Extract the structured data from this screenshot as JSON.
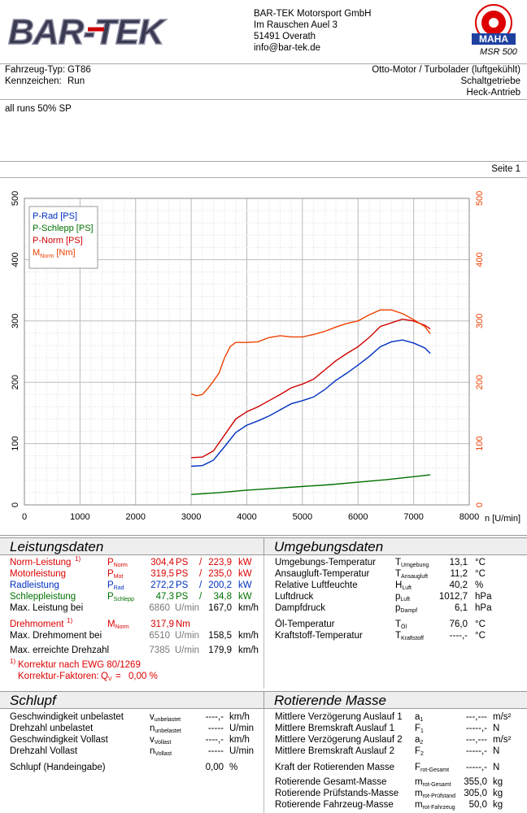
{
  "company": {
    "name": "BAR-TEK Motorsport GmbH",
    "street": "Im Rauschen Auel 3",
    "city": "51491 Overath",
    "email": "info@bar-tek.de",
    "logo_text": "BAR-TEK"
  },
  "device": {
    "model": "MSR 500",
    "brand": "MAHA",
    "seal_text": "Maschinenbau Haldenwang"
  },
  "vehicle": {
    "type_label": "Fahrzeug-Typ:",
    "type_value": "GT86",
    "plate_label": "Kennzeichen:",
    "plate_value": "Run",
    "engine": "Otto-Motor / Turbolader (luftgekühlt)",
    "gearbox": "Schaltgetriebe",
    "drive": "Heck-Antrieb"
  },
  "comment": "all runs 50% SP",
  "page": "Seite 1",
  "chart_data": {
    "type": "line",
    "xlabel": "n [U/min]",
    "xlim": [
      0,
      8000
    ],
    "ylim_left": [
      0,
      500
    ],
    "ylim_right": [
      0,
      500
    ],
    "x_ticks": [
      "0",
      "1000",
      "2000",
      "3000",
      "4000",
      "5000",
      "6000",
      "7000",
      "8000"
    ],
    "y_ticks": [
      "0",
      "100",
      "200",
      "300",
      "400",
      "500"
    ],
    "legend": [
      "P-Rad [PS]",
      "P-Schlepp [PS]",
      "P-Norm [PS]",
      "M_Norm [Nm]"
    ],
    "series": [
      {
        "name": "P-Rad [PS]",
        "color": "#0030c0",
        "x": [
          3000,
          3200,
          3400,
          3600,
          3800,
          4000,
          4200,
          4400,
          4600,
          4800,
          5000,
          5200,
          5400,
          5600,
          5800,
          6000,
          6200,
          6400,
          6600,
          6800,
          7000,
          7200,
          7300
        ],
        "y": [
          63,
          64,
          73,
          95,
          118,
          130,
          137,
          145,
          155,
          165,
          170,
          176,
          188,
          203,
          215,
          228,
          242,
          258,
          266,
          269,
          264,
          256,
          247
        ]
      },
      {
        "name": "P-Schlepp [PS]",
        "color": "#007000",
        "x": [
          3000,
          3500,
          4000,
          4500,
          5000,
          5500,
          6000,
          6500,
          7000,
          7300
        ],
        "y": [
          17,
          20,
          24,
          27,
          30,
          33,
          37,
          41,
          46,
          49
        ]
      },
      {
        "name": "P-Norm [PS]",
        "color": "#d00000",
        "x": [
          3000,
          3200,
          3400,
          3600,
          3800,
          4000,
          4200,
          4400,
          4600,
          4800,
          5000,
          5200,
          5400,
          5600,
          5800,
          6000,
          6200,
          6400,
          6600,
          6800,
          7000,
          7200,
          7300
        ],
        "y": [
          77,
          78,
          88,
          114,
          140,
          152,
          160,
          170,
          180,
          191,
          197,
          205,
          220,
          235,
          247,
          258,
          273,
          291,
          297,
          303,
          300,
          293,
          287
        ]
      },
      {
        "name": "M_Norm [Nm]",
        "color": "#f04000",
        "x": [
          3000,
          3100,
          3200,
          3300,
          3400,
          3500,
          3600,
          3700,
          3800,
          4000,
          4200,
          4400,
          4600,
          4800,
          5000,
          5200,
          5400,
          5600,
          5800,
          6000,
          6200,
          6400,
          6600,
          6800,
          7000,
          7200,
          7300
        ],
        "y": [
          181,
          178,
          180,
          190,
          202,
          215,
          240,
          258,
          265,
          265,
          266,
          273,
          276,
          274,
          274,
          278,
          283,
          290,
          296,
          300,
          310,
          318,
          318,
          312,
          302,
          291,
          279
        ]
      }
    ]
  },
  "leistung": {
    "title": "Leistungsdaten",
    "rows": [
      {
        "label": "Norm-Leistung",
        "note": "1)",
        "sym": "P",
        "sub": "Norm",
        "v1": "304,4",
        "u1": "PS",
        "sep": "/",
        "v2": "223,9",
        "u2": "kW",
        "cls": "red"
      },
      {
        "label": "Motorleistung",
        "note": "",
        "sym": "P",
        "sub": "Mot",
        "v1": "319,5",
        "u1": "PS",
        "sep": "/",
        "v2": "235,0",
        "u2": "kW",
        "cls": "red"
      },
      {
        "label": "Radleistung",
        "note": "",
        "sym": "P",
        "sub": "Rad",
        "v1": "272,2",
        "u1": "PS",
        "sep": "/",
        "v2": "200,2",
        "u2": "kW",
        "cls": "blue"
      },
      {
        "label": "Schleppleistung",
        "note": "",
        "sym": "P",
        "sub": "Schlepp",
        "v1": "47,3",
        "u1": "PS",
        "sep": "/",
        "v2": "34,8",
        "u2": "kW",
        "cls": "green"
      }
    ],
    "max_power_label": "Max. Leistung bei",
    "max_power_rpm": "6860",
    "max_power_rpm_unit": "U/min",
    "max_power_speed": "167,0",
    "max_power_speed_unit": "km/h",
    "torque_label": "Drehmoment",
    "torque_note": "1)",
    "torque_sym": "M",
    "torque_sub": "Norm",
    "torque_value": "317,9",
    "torque_unit": "Nm",
    "max_torque_label": "Max. Drehmoment bei",
    "max_torque_rpm": "6510",
    "max_torque_rpm_unit": "U/min",
    "max_torque_speed": "158,5",
    "max_torque_speed_unit": "km/h",
    "max_rpm_label": "Max. erreichte Drehzahl",
    "max_rpm": "7385",
    "max_rpm_unit": "U/min",
    "max_rpm_speed": "179,9",
    "max_rpm_speed_unit": "km/h",
    "correction_note": "1)",
    "correction": "Korrektur nach EWG 80/1269",
    "factor_label": "Korrektur-Faktoren:",
    "factor_sym": "Q",
    "factor_sub": "V",
    "factor_eq": "=",
    "factor_value": "0,00 %"
  },
  "umgebung": {
    "title": "Umgebungsdaten",
    "rows": [
      {
        "label": "Umgebungs-Temperatur",
        "sym": "T",
        "sub": "Umgebung",
        "value": "13,1",
        "unit": "°C"
      },
      {
        "label": "Ansaugluft-Temperatur",
        "sym": "T",
        "sub": "Ansaugluft",
        "value": "11,2",
        "unit": "°C"
      },
      {
        "label": "Relative Luftfeuchte",
        "sym": "H",
        "sub": "Luft",
        "value": "40,2",
        "unit": "%"
      },
      {
        "label": "Luftdruck",
        "sym": "p",
        "sub": "Luft",
        "value": "1012,7",
        "unit": "hPa"
      },
      {
        "label": "Dampfdruck",
        "sym": "p",
        "sub": "Dampf",
        "value": "6,1",
        "unit": "hPa"
      }
    ],
    "rows2": [
      {
        "label": "Öl-Temperatur",
        "sym": "T",
        "sub": "Öl",
        "value": "76,0",
        "unit": "°C"
      },
      {
        "label": "Kraftstoff-Temperatur",
        "sym": "T",
        "sub": "Kraftstoff",
        "value": "----,-",
        "unit": "°C"
      }
    ]
  },
  "schlupf": {
    "title": "Schlupf",
    "rows": [
      {
        "label": "Geschwindigkeit unbelastet",
        "sym": "v",
        "sub": "unbelastet",
        "value": "----,-",
        "unit": "km/h"
      },
      {
        "label": "Drehzahl unbelastet",
        "sym": "n",
        "sub": "unbelastet",
        "value": "-----",
        "unit": "U/min"
      },
      {
        "label": "Geschwindigkeit Vollast",
        "sym": "v",
        "sub": "Vollast",
        "value": "----,-",
        "unit": "km/h"
      },
      {
        "label": "Drehzahl Vollast",
        "sym": "n",
        "sub": "Vollast",
        "value": "-----",
        "unit": "U/min"
      }
    ],
    "input_label": "Schlupf (Handeingabe)",
    "input_value": "0,00",
    "input_unit": "%"
  },
  "masse": {
    "title": "Rotierende Masse",
    "rows": [
      {
        "label": "Mittlere Verzögerung Auslauf 1",
        "sym": "a",
        "sub": "1",
        "value": "---,---",
        "unit": "m/s²"
      },
      {
        "label": "Mittlere Bremskraft Auslauf 1",
        "sym": "F",
        "sub": "1",
        "value": "-----,-",
        "unit": "N"
      },
      {
        "label": "Mittlere Verzögerung Auslauf 2",
        "sym": "a",
        "sub": "2",
        "value": "---,---",
        "unit": "m/s²"
      },
      {
        "label": "Mittlere Bremskraft Auslauf 2",
        "sym": "F",
        "sub": "2",
        "value": "-----,-",
        "unit": "N"
      }
    ],
    "force_label": "Kraft der Rotierenden Masse",
    "force_sym": "F",
    "force_sub": "rot-Gesamt",
    "force_value": "-----,-",
    "force_unit": "N",
    "rows2": [
      {
        "label": "Rotierende Gesamt-Masse",
        "sym": "m",
        "sub": "rot-Gesamt",
        "value": "355,0",
        "unit": "kg"
      },
      {
        "label": "Rotierende Prüfstands-Masse",
        "sym": "m",
        "sub": "rot-Prüfstand",
        "value": "305,0",
        "unit": "kg"
      },
      {
        "label": "Rotierende Fahrzeug-Masse",
        "sym": "m",
        "sub": "rot-Fahrzeug",
        "value": "50,0",
        "unit": "kg"
      }
    ]
  }
}
